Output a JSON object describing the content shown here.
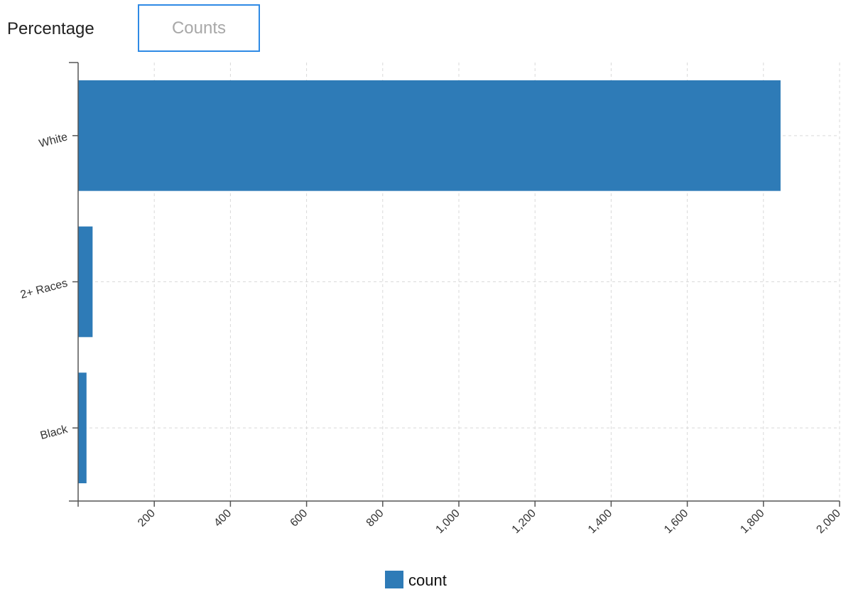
{
  "tabs": {
    "percentage_label": "Percentage",
    "counts_label": "Counts",
    "active": "Counts"
  },
  "colors": {
    "bar": "#2e7bb7",
    "active_tab_border": "#2f8ae5",
    "grid": "#d9d9d9",
    "axis": "#555555"
  },
  "chart_data": {
    "type": "bar",
    "orientation": "horizontal",
    "categories": [
      "White",
      "2+ Races",
      "Black"
    ],
    "series": [
      {
        "name": "count",
        "values": [
          1845,
          38,
          22
        ]
      }
    ],
    "xlim": [
      0,
      2000
    ],
    "xticks": [
      0,
      200,
      400,
      600,
      800,
      1000,
      1200,
      1400,
      1600,
      1800,
      2000
    ],
    "xtick_labels": [
      "",
      "200",
      "400",
      "600",
      "800",
      "1,000",
      "1,200",
      "1,400",
      "1,600",
      "1,800",
      "2,000"
    ],
    "grid": true,
    "legend": {
      "position": "bottom-center",
      "entries": [
        "count"
      ]
    },
    "xlabel": "",
    "ylabel": "",
    "title": ""
  }
}
